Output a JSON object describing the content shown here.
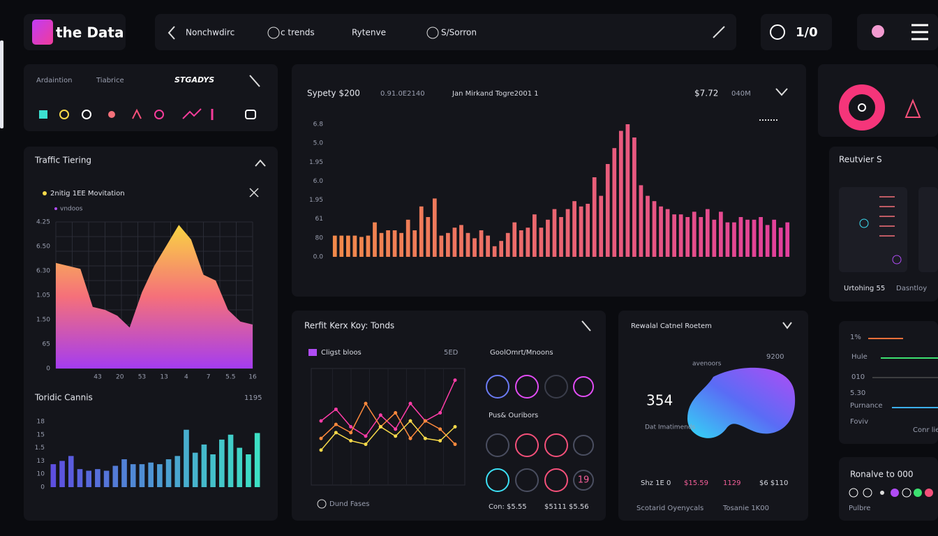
{
  "header": {
    "logo": "the Data",
    "nav": [
      "Nonchwdirc",
      "c trends",
      "Rytenve",
      "S/Sorron"
    ],
    "counter": "1/0"
  },
  "filters": {
    "labels": [
      "Ardaintion",
      "Tiabrice"
    ],
    "status": "STGADYS"
  },
  "main_panel": {
    "texts": [
      "Sypety $200",
      "0.91.0E2140",
      "Jan Mirkand Togre2001 1",
      "$7.72",
      "040M"
    ]
  },
  "traffic_panel": {
    "title": "Traffic Tiering"
  },
  "toridic_panel": {
    "title": "Toridic Cannis",
    "figure": "1195"
  },
  "trends_panel": {
    "title": "Rerfit Kerx Koy: Tonds",
    "legend": "Cligst bloos",
    "legend_value": "5ED",
    "ring_title": "GoolOmrt/Mnoons",
    "ring_subtitle": "Pus& Ouribors",
    "ring_value": "19",
    "footer": "Dund Fases",
    "footer_values": [
      "Con: $5.55",
      "$5111 $5.56"
    ]
  },
  "retail_panel": {
    "title": "Rewalal Catnel Roetem",
    "top_value": "9200",
    "legend": "avenoors",
    "big_value": "354",
    "big_caption": "Dat Imatimends",
    "stats": [
      "Shz 1E 0",
      "$15.59",
      "1129",
      "$6 $110"
    ],
    "footer": [
      "Scotarid Oyenycals",
      "Tosanie 1K00"
    ]
  },
  "side": {
    "review_title": "Reutvier S",
    "review_footer": [
      "Urtohing 55",
      "Dasntloy"
    ],
    "rows": [
      "1%",
      "Hule",
      "010",
      "5.30",
      "Purnance",
      "Foviv"
    ],
    "rows_footer": "Conr lie",
    "bottom_title": "Ronalve to 000",
    "bottom_caption": "Pulbre"
  },
  "chart_data": [
    {
      "type": "bar",
      "y_labels": [
        "6.8",
        "5.0",
        "1.95",
        "6.0",
        "1.95",
        "61",
        "80",
        "0.0"
      ],
      "ylim": [
        0,
        100
      ],
      "colors": [
        "#f2894a",
        "#e23f9c"
      ],
      "values": [
        16,
        16,
        16,
        16,
        15,
        16,
        26,
        18,
        20,
        20,
        18,
        28,
        20,
        38,
        30,
        44,
        16,
        18,
        22,
        24,
        18,
        14,
        20,
        16,
        8,
        12,
        18,
        26,
        20,
        22,
        32,
        22,
        28,
        36,
        30,
        36,
        42,
        38,
        40,
        60,
        46,
        70,
        82,
        95,
        100,
        90,
        54,
        46,
        42,
        38,
        36,
        32,
        32,
        30,
        34,
        30,
        36,
        28,
        34,
        26,
        26,
        30,
        28,
        28,
        30,
        24,
        28,
        22,
        26
      ]
    },
    {
      "type": "area",
      "subtitle": "2nitig 1EE Movitation",
      "legend": "vndoos",
      "y_labels": [
        "4.25",
        "6.50",
        "6.30",
        "1.05",
        "1.50",
        "65",
        "0"
      ],
      "x_labels": [
        "43",
        "20",
        "53",
        "13",
        "4",
        "7",
        "5.5",
        "16"
      ],
      "ylim": [
        0,
        100
      ],
      "grid": true,
      "colors": [
        "#f9d442",
        "#f5707a",
        "#a43cf0"
      ],
      "values": [
        72,
        70,
        68,
        42,
        40,
        36,
        28,
        52,
        70,
        84,
        98,
        88,
        64,
        60,
        40,
        32,
        30
      ]
    },
    {
      "type": "bar",
      "y_labels": [
        "18",
        "15",
        "1.5",
        "13",
        "10",
        "0"
      ],
      "ylim": [
        0,
        80
      ],
      "colors": [
        "#5d4fe0",
        "#3de0c4"
      ],
      "values": [
        28,
        32,
        38,
        22,
        20,
        22,
        20,
        26,
        34,
        28,
        28,
        30,
        28,
        34,
        38,
        70,
        42,
        52,
        40,
        58,
        64,
        48,
        40,
        66
      ]
    },
    {
      "type": "line",
      "ylim": [
        0,
        100
      ],
      "series": [
        {
          "name": "",
          "color": "#ff3da8",
          "values": [
            55,
            65,
            50,
            42,
            60,
            48,
            70,
            55,
            62,
            90
          ]
        },
        {
          "name": "",
          "color": "#ff8a3d",
          "values": [
            40,
            52,
            45,
            70,
            50,
            62,
            40,
            55,
            48,
            35
          ]
        },
        {
          "name": "",
          "color": "#f7d94a",
          "values": [
            30,
            45,
            38,
            35,
            50,
            42,
            55,
            40,
            38,
            50
          ]
        }
      ]
    }
  ]
}
